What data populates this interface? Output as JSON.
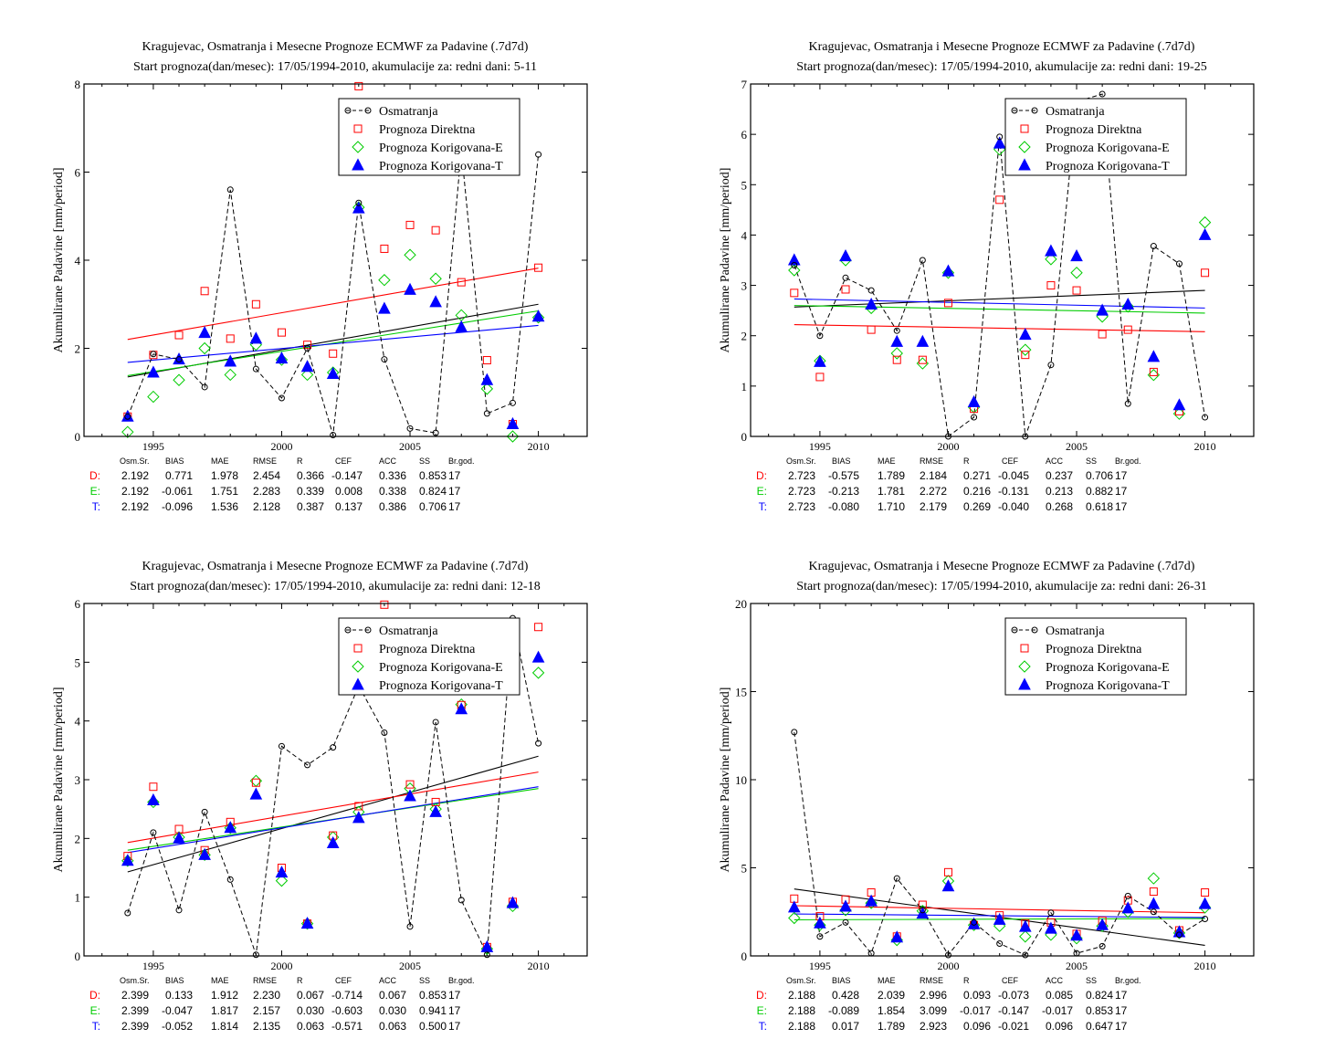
{
  "colors": {
    "observed": "#000000",
    "direct": "#ff0000",
    "corrected_e": "#00cc00",
    "corrected_t": "#0000ff"
  },
  "legend": {
    "observed": "Osmatranja",
    "direct": "Prognoza Direktna",
    "corrected_e": "Prognoza Korigovana-E",
    "corrected_t": "Prognoza Korigovana-T"
  },
  "stats_headers": [
    "Osm.Sr.",
    "BIAS",
    "MAE",
    "RMSE",
    "R",
    "CEF",
    "ACC",
    "SS",
    "Br.god."
  ],
  "chart_data": [
    {
      "type": "scatter",
      "title": "Kragujevac, Osmatranja i Mesecne Prognoze ECMWF za Padavine (.7d7d)",
      "subtitle": "Start prognoza(dan/mesec): 17/05/1994-2010, akumulacije za: redni dani: 5-11",
      "ylabel": "Akumulirane Padavine [mm/period]",
      "xlabel": "",
      "xlim": [
        1992.3,
        2011.9
      ],
      "ylim": [
        0,
        8
      ],
      "yticks": [
        0,
        2,
        4,
        6,
        8
      ],
      "xticks": [
        1995,
        2000,
        2005,
        2010
      ],
      "x": [
        1994,
        1995,
        1996,
        1997,
        1998,
        1999,
        2000,
        2001,
        2002,
        2003,
        2004,
        2005,
        2006,
        2007,
        2008,
        2009,
        2010
      ],
      "series": [
        {
          "name": "Osmatranja",
          "key": "observed",
          "values": [
            0.45,
            1.87,
            1.75,
            1.12,
            5.6,
            1.53,
            0.87,
            2.0,
            0.03,
            5.3,
            1.75,
            0.18,
            0.08,
            6.5,
            0.52,
            0.76,
            6.4
          ]
        },
        {
          "name": "Prognoza Direktna",
          "key": "direct",
          "values": [
            0.45,
            1.85,
            2.3,
            3.3,
            2.22,
            3.0,
            2.36,
            2.08,
            1.88,
            7.95,
            4.26,
            4.8,
            4.68,
            3.5,
            1.73,
            0.28,
            3.83
          ]
        },
        {
          "name": "Prognoza Korigovana-E",
          "key": "corrected_e",
          "values": [
            0.1,
            0.9,
            1.28,
            2.0,
            1.4,
            2.08,
            1.74,
            1.4,
            1.45,
            5.2,
            3.55,
            4.12,
            3.58,
            2.75,
            1.08,
            0.0,
            2.7
          ]
        },
        {
          "name": "Prognoza Korigovana-T",
          "key": "corrected_t",
          "values": [
            0.45,
            1.45,
            1.75,
            2.35,
            1.7,
            2.22,
            1.77,
            1.58,
            1.42,
            5.18,
            2.9,
            3.33,
            3.05,
            2.48,
            1.28,
            0.28,
            2.72
          ]
        }
      ],
      "trends": [
        {
          "key": "observed",
          "start": 1.35,
          "end": 3.0
        },
        {
          "key": "direct",
          "start": 2.2,
          "end": 3.82
        },
        {
          "key": "corrected_e",
          "start": 1.38,
          "end": 2.85
        },
        {
          "key": "corrected_t",
          "start": 1.68,
          "end": 2.52
        }
      ],
      "stats": [
        {
          "label": "D:",
          "key": "direct",
          "values": [
            "2.192",
            "0.771",
            "1.978",
            "2.454",
            "0.366",
            "-0.147",
            "0.336",
            "0.853",
            "17"
          ]
        },
        {
          "label": "E:",
          "key": "corrected_e",
          "values": [
            "2.192",
            "-0.061",
            "1.751",
            "2.283",
            "0.339",
            "0.008",
            "0.338",
            "0.824",
            "17"
          ]
        },
        {
          "label": "T:",
          "key": "corrected_t",
          "values": [
            "2.192",
            "-0.096",
            "1.536",
            "2.128",
            "0.387",
            "0.137",
            "0.386",
            "0.706",
            "17"
          ]
        }
      ]
    },
    {
      "type": "scatter",
      "title": "Kragujevac, Osmatranja i Mesecne Prognoze ECMWF za Padavine (.7d7d)",
      "subtitle": "Start prognoza(dan/mesec): 17/05/1994-2010, akumulacije za: redni dani: 19-25",
      "ylabel": "Akumulirane Padavine [mm/period]",
      "xlabel": "",
      "xlim": [
        1992.3,
        2011.9
      ],
      "ylim": [
        0,
        7
      ],
      "yticks": [
        0,
        1,
        2,
        3,
        4,
        5,
        6,
        7
      ],
      "xticks": [
        1995,
        2000,
        2005,
        2010
      ],
      "x": [
        1994,
        1995,
        1996,
        1997,
        1998,
        1999,
        2000,
        2001,
        2002,
        2003,
        2004,
        2005,
        2006,
        2007,
        2008,
        2009,
        2010
      ],
      "series": [
        {
          "name": "Osmatranja",
          "key": "observed",
          "values": [
            3.4,
            2.0,
            3.15,
            2.9,
            2.1,
            3.5,
            0.0,
            0.38,
            5.95,
            0.0,
            1.42,
            6.65,
            6.8,
            0.65,
            3.78,
            3.43,
            0.38
          ]
        },
        {
          "name": "Prognoza Direktna",
          "key": "direct",
          "values": [
            2.85,
            1.18,
            2.92,
            2.12,
            1.52,
            1.52,
            2.65,
            0.55,
            4.7,
            1.62,
            3.0,
            2.9,
            2.03,
            2.12,
            1.28,
            0.5,
            3.25
          ]
        },
        {
          "name": "Prognoza Korigovana-E",
          "key": "corrected_e",
          "values": [
            3.3,
            1.5,
            3.5,
            2.55,
            1.65,
            1.45,
            3.25,
            0.58,
            5.7,
            1.72,
            3.52,
            3.25,
            2.38,
            2.58,
            1.22,
            0.45,
            4.25
          ]
        },
        {
          "name": "Prognoza Korigovana-T",
          "key": "corrected_t",
          "values": [
            3.5,
            1.48,
            3.58,
            2.62,
            1.88,
            1.88,
            3.28,
            0.68,
            5.82,
            2.02,
            3.68,
            3.58,
            2.5,
            2.62,
            1.58,
            0.62,
            4.0
          ]
        }
      ],
      "trends": [
        {
          "key": "observed",
          "start": 2.57,
          "end": 2.9
        },
        {
          "key": "direct",
          "start": 2.22,
          "end": 2.08
        },
        {
          "key": "corrected_e",
          "start": 2.6,
          "end": 2.45
        },
        {
          "key": "corrected_t",
          "start": 2.73,
          "end": 2.55
        }
      ],
      "stats": [
        {
          "label": "D:",
          "key": "direct",
          "values": [
            "2.723",
            "-0.575",
            "1.789",
            "2.184",
            "0.271",
            "-0.045",
            "0.237",
            "0.706",
            "17"
          ]
        },
        {
          "label": "E:",
          "key": "corrected_e",
          "values": [
            "2.723",
            "-0.213",
            "1.781",
            "2.272",
            "0.216",
            "-0.131",
            "0.213",
            "0.882",
            "17"
          ]
        },
        {
          "label": "T:",
          "key": "corrected_t",
          "values": [
            "2.723",
            "-0.080",
            "1.710",
            "2.179",
            "0.269",
            "-0.040",
            "0.268",
            "0.618",
            "17"
          ]
        }
      ]
    },
    {
      "type": "scatter",
      "title": "Kragujevac, Osmatranja i Mesecne Prognoze ECMWF za Padavine (.7d7d)",
      "subtitle": "Start prognoza(dan/mesec): 17/05/1994-2010, akumulacije za: redni dani: 12-18",
      "ylabel": "Akumulirane Padavine [mm/period]",
      "xlabel": "",
      "xlim": [
        1992.3,
        2011.9
      ],
      "ylim": [
        0,
        6
      ],
      "yticks": [
        0,
        1,
        2,
        3,
        4,
        5,
        6
      ],
      "xticks": [
        1995,
        2000,
        2005,
        2010
      ],
      "x": [
        1994,
        1995,
        1996,
        1997,
        1998,
        1999,
        2000,
        2001,
        2002,
        2003,
        2004,
        2005,
        2006,
        2007,
        2008,
        2009,
        2010
      ],
      "series": [
        {
          "name": "Osmatranja",
          "key": "observed",
          "values": [
            0.73,
            2.1,
            0.78,
            2.45,
            1.3,
            0.02,
            3.57,
            3.25,
            3.55,
            4.6,
            3.8,
            0.5,
            3.98,
            0.95,
            0.02,
            5.75,
            3.62
          ]
        },
        {
          "name": "Prognoza Direktna",
          "key": "direct",
          "values": [
            1.7,
            2.88,
            2.16,
            1.8,
            2.28,
            2.95,
            1.5,
            0.55,
            2.05,
            2.55,
            5.98,
            2.92,
            2.62,
            4.27,
            0.15,
            0.92,
            5.6
          ]
        },
        {
          "name": "Prognoza Korigovana-E",
          "key": "corrected_e",
          "values": [
            1.62,
            2.62,
            2.02,
            1.72,
            2.18,
            2.98,
            1.28,
            0.55,
            2.02,
            2.45,
            4.6,
            2.85,
            2.5,
            4.28,
            0.12,
            0.85,
            4.82
          ]
        },
        {
          "name": "Prognoza Korigovana-T",
          "key": "corrected_t",
          "values": [
            1.62,
            2.65,
            2.0,
            1.72,
            2.18,
            2.75,
            1.42,
            0.55,
            1.92,
            2.35,
            4.68,
            2.72,
            2.45,
            4.2,
            0.15,
            0.9,
            5.08
          ]
        }
      ],
      "trends": [
        {
          "key": "observed",
          "start": 1.43,
          "end": 3.4
        },
        {
          "key": "direct",
          "start": 1.93,
          "end": 3.13
        },
        {
          "key": "corrected_e",
          "start": 1.8,
          "end": 2.85
        },
        {
          "key": "corrected_t",
          "start": 1.76,
          "end": 2.88
        }
      ],
      "stats": [
        {
          "label": "D:",
          "key": "direct",
          "values": [
            "2.399",
            "0.133",
            "1.912",
            "2.230",
            "0.067",
            "-0.714",
            "0.067",
            "0.853",
            "17"
          ]
        },
        {
          "label": "E:",
          "key": "corrected_e",
          "values": [
            "2.399",
            "-0.047",
            "1.817",
            "2.157",
            "0.030",
            "-0.603",
            "0.030",
            "0.941",
            "17"
          ]
        },
        {
          "label": "T:",
          "key": "corrected_t",
          "values": [
            "2.399",
            "-0.052",
            "1.814",
            "2.135",
            "0.063",
            "-0.571",
            "0.063",
            "0.500",
            "17"
          ]
        }
      ]
    },
    {
      "type": "scatter",
      "title": "Kragujevac, Osmatranja i Mesecne Prognoze ECMWF za Padavine (.7d7d)",
      "subtitle": "Start prognoza(dan/mesec): 17/05/1994-2010, akumulacije za: redni dani: 26-31",
      "ylabel": "Akumulirane Padavine [mm/period]",
      "xlabel": "",
      "xlim": [
        1992.3,
        2011.9
      ],
      "ylim": [
        0,
        20
      ],
      "yticks": [
        0,
        5,
        10,
        15,
        20
      ],
      "xticks": [
        1995,
        2000,
        2005,
        2010
      ],
      "x": [
        1994,
        1995,
        1996,
        1997,
        1998,
        1999,
        2000,
        2001,
        2002,
        2003,
        2004,
        2005,
        2006,
        2007,
        2008,
        2009,
        2010
      ],
      "series": [
        {
          "name": "Osmatranja",
          "key": "observed",
          "values": [
            12.7,
            1.1,
            1.9,
            0.15,
            4.4,
            2.6,
            0.05,
            1.9,
            0.7,
            0.05,
            2.45,
            0.15,
            0.55,
            3.4,
            2.5,
            1.2,
            2.1
          ]
        },
        {
          "name": "Prognoza Direktna",
          "key": "direct",
          "values": [
            3.25,
            2.25,
            3.2,
            3.6,
            1.1,
            2.9,
            4.75,
            1.75,
            2.3,
            1.85,
            1.9,
            1.25,
            2.0,
            3.15,
            3.65,
            1.45,
            3.6
          ]
        },
        {
          "name": "Prognoza Korigovana-E",
          "key": "corrected_e",
          "values": [
            2.15,
            1.75,
            2.6,
            3.0,
            0.9,
            2.55,
            4.25,
            1.75,
            1.7,
            1.1,
            1.2,
            1.0,
            1.7,
            2.5,
            4.4,
            1.3,
            2.75
          ]
        },
        {
          "name": "Prognoza Korigovana-T",
          "key": "corrected_t",
          "values": [
            2.75,
            1.85,
            2.8,
            3.1,
            1.05,
            2.4,
            3.95,
            1.8,
            2.05,
            1.65,
            1.55,
            1.15,
            1.75,
            2.7,
            2.95,
            1.35,
            2.95
          ]
        }
      ],
      "trends": [
        {
          "key": "observed",
          "start": 3.8,
          "end": 0.6
        },
        {
          "key": "direct",
          "start": 2.85,
          "end": 2.45
        },
        {
          "key": "corrected_e",
          "start": 2.05,
          "end": 2.12
        },
        {
          "key": "corrected_t",
          "start": 2.38,
          "end": 2.18
        }
      ],
      "stats": [
        {
          "label": "D:",
          "key": "direct",
          "values": [
            "2.188",
            "0.428",
            "2.039",
            "2.996",
            "0.093",
            "-0.073",
            "0.085",
            "0.824",
            "17"
          ]
        },
        {
          "label": "E:",
          "key": "corrected_e",
          "values": [
            "2.188",
            "-0.089",
            "1.854",
            "3.099",
            "-0.017",
            "-0.147",
            "-0.017",
            "0.853",
            "17"
          ]
        },
        {
          "label": "T:",
          "key": "corrected_t",
          "values": [
            "2.188",
            "0.017",
            "1.789",
            "2.923",
            "0.096",
            "-0.021",
            "0.096",
            "0.647",
            "17"
          ]
        }
      ]
    }
  ]
}
